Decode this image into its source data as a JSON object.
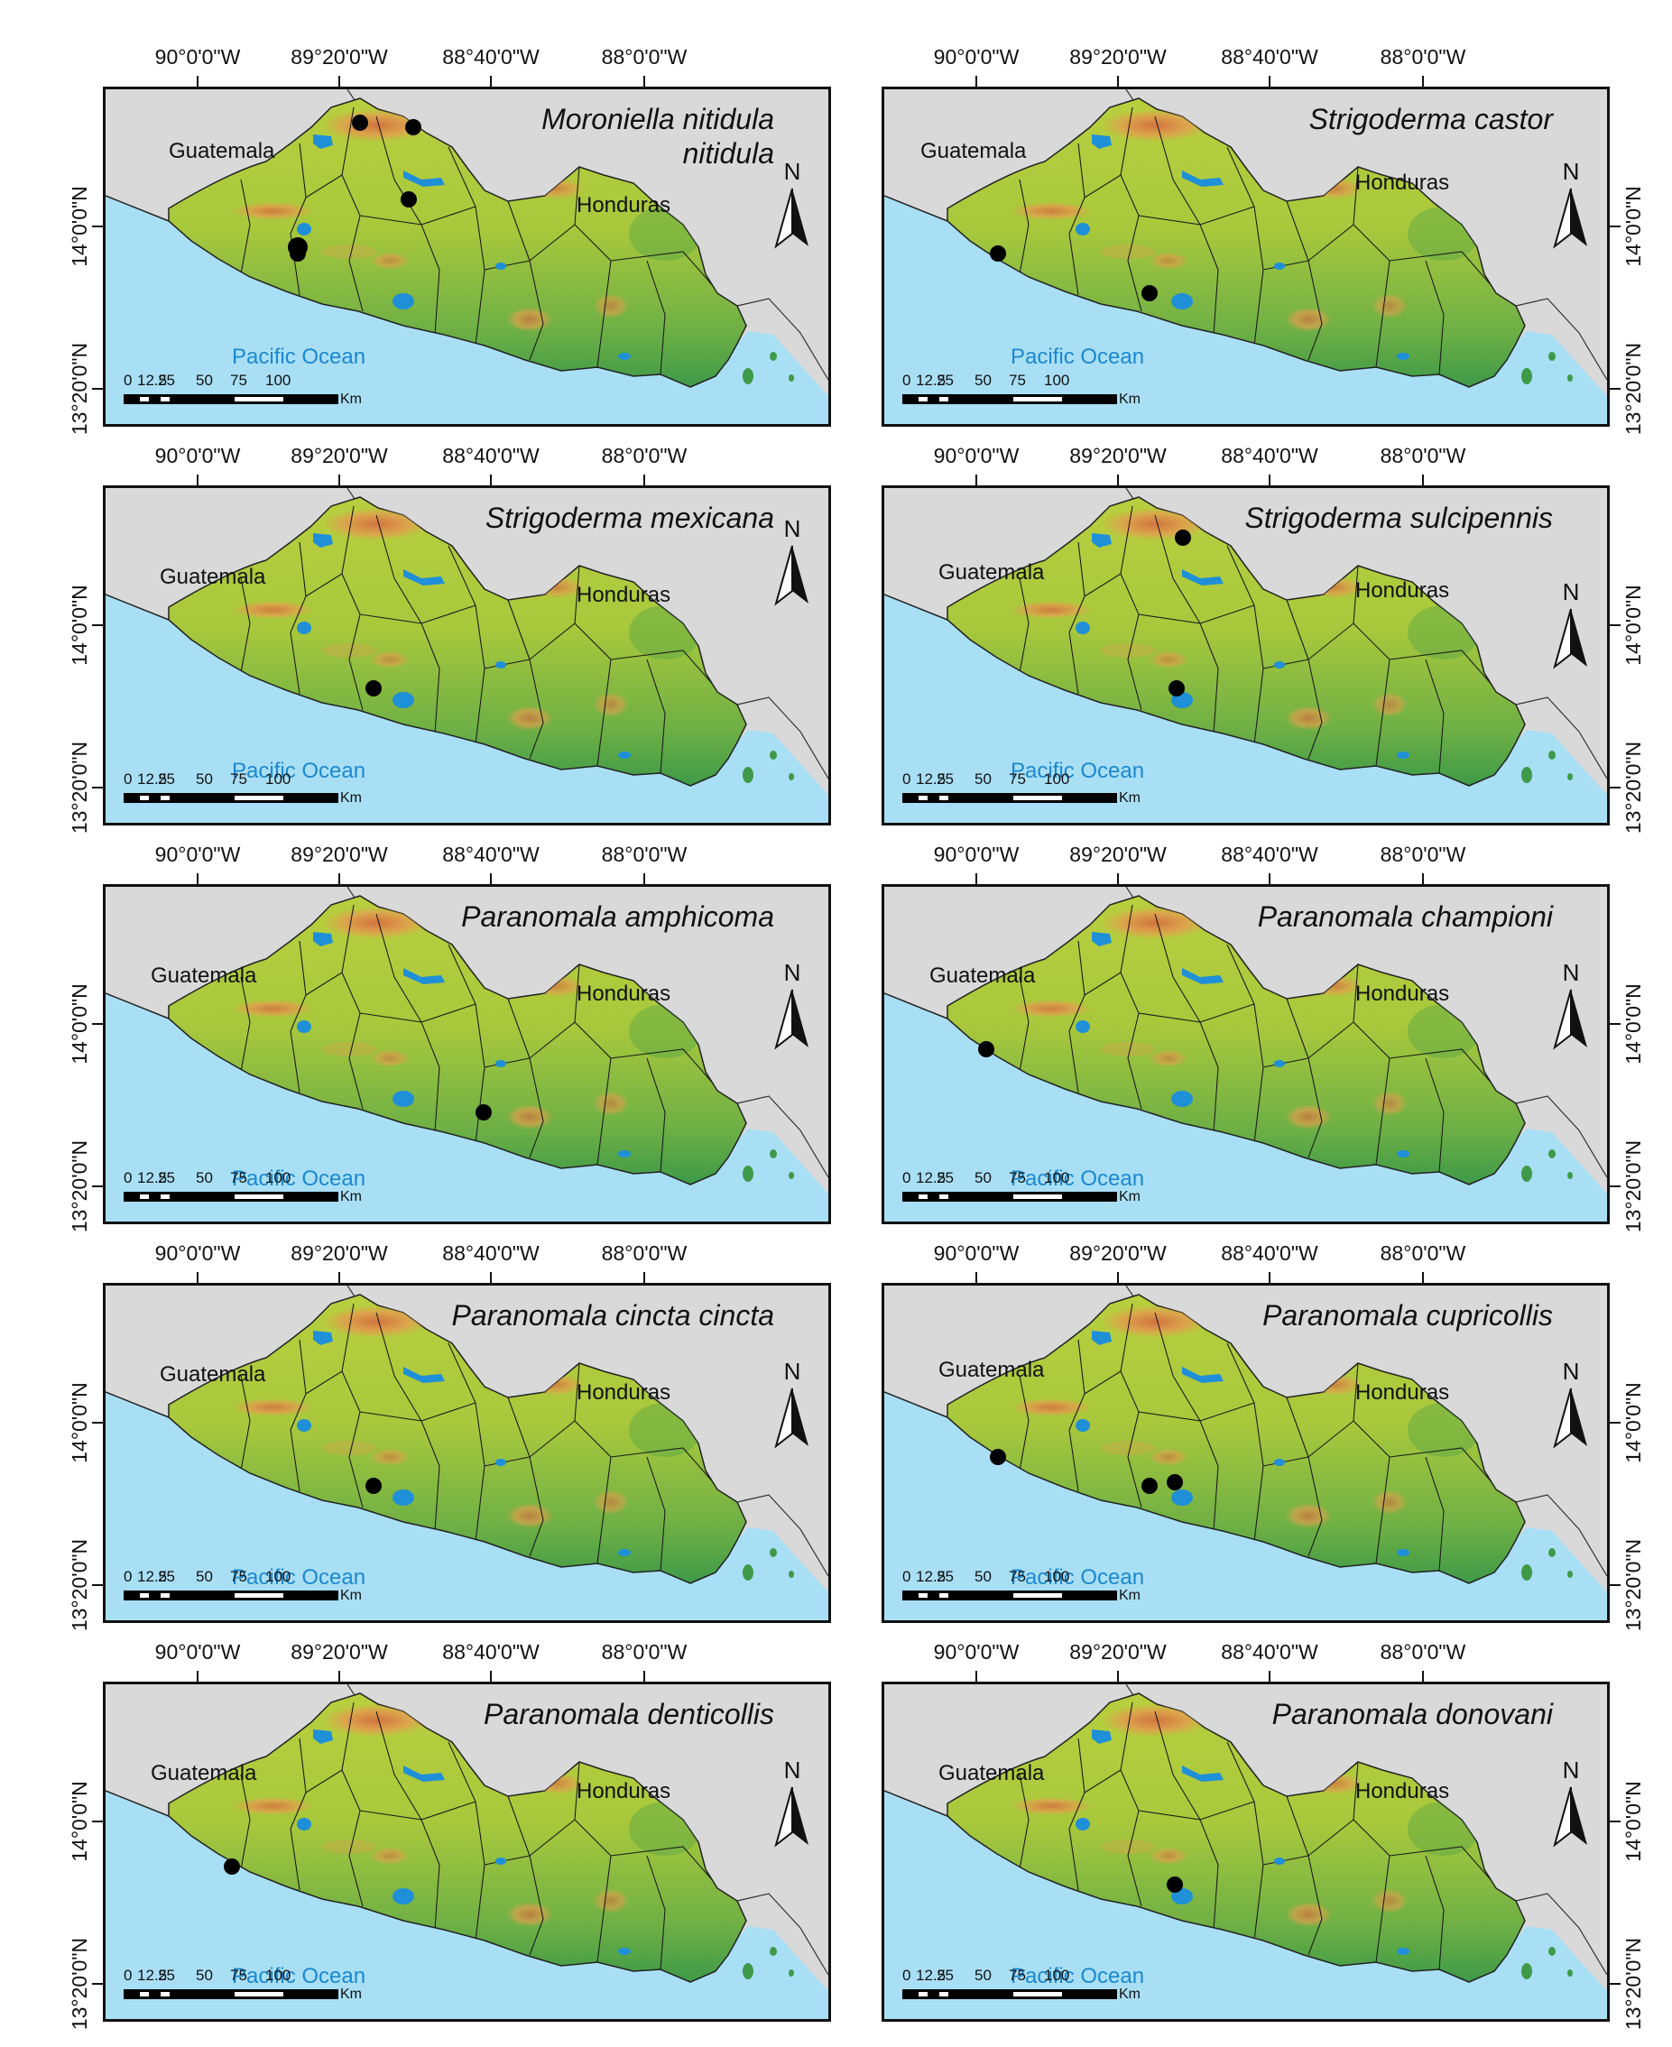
{
  "common": {
    "lon_labels": [
      "90°0'0\"W",
      "89°20'0\"W",
      "88°40'0\"W",
      "88°0'0\"W"
    ],
    "lat_labels": [
      "14°0'0\"N",
      "13°20'0\"N"
    ],
    "country_left": "Guatemala",
    "country_right": "Honduras",
    "ocean": "Pacific Ocean",
    "north": "N",
    "scale_numbers": [
      "0",
      "12.5",
      "25",
      "50",
      "75",
      "100"
    ],
    "scale_unit": "Km",
    "colors": {
      "ocean": "#a9dff5",
      "land_outside": "#d9d9d9",
      "lowland": "#3e9a48",
      "midland": "#b8cf3e",
      "highland": "#e0a04d",
      "peak": "#d56a40",
      "lake": "#1f8fd8",
      "record_marker": "#000000"
    }
  },
  "panels": [
    {
      "species": "Moroniella nitidula nitidula",
      "records": 5
    },
    {
      "species": "Strigoderma castor",
      "records": 2
    },
    {
      "species": "Strigoderma mexicana",
      "records": 1
    },
    {
      "species": "Strigoderma sulcipennis",
      "records": 2
    },
    {
      "species": "Paranomala amphicoma",
      "records": 1
    },
    {
      "species": "Paranomala championi",
      "records": 1
    },
    {
      "species": "Paranomala cincta cincta",
      "records": 1
    },
    {
      "species": "Paranomala cupricollis",
      "records": 3
    },
    {
      "species": "Paranomala denticollis",
      "records": 1
    },
    {
      "species": "Paranomala donovani",
      "records": 1
    }
  ]
}
